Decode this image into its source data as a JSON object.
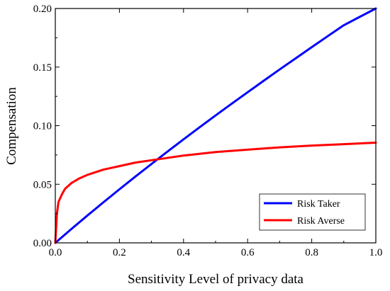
{
  "chart_data": {
    "type": "line",
    "title": "",
    "xlabel": "Sensitivity Level of privacy data",
    "ylabel": "Compensation",
    "xlim": [
      0.0,
      1.0
    ],
    "ylim": [
      0.0,
      0.2
    ],
    "xticks": [
      "0.0",
      "0.2",
      "0.4",
      "0.6",
      "0.8",
      "1.0"
    ],
    "yticks": [
      "0.00",
      "0.05",
      "0.10",
      "0.15",
      "0.20"
    ],
    "grid": false,
    "legend_position": "bottom-right",
    "series": [
      {
        "name": "Risk Taker",
        "color": "#0000ff",
        "x": [
          0.0,
          0.05,
          0.1,
          0.15,
          0.2,
          0.25,
          0.3,
          0.35,
          0.4,
          0.45,
          0.5,
          0.55,
          0.6,
          0.65,
          0.7,
          0.75,
          0.8,
          0.85,
          0.9,
          0.95,
          1.0
        ],
        "y": [
          0.0,
          0.0118,
          0.0233,
          0.0346,
          0.0457,
          0.0566,
          0.0673,
          0.0779,
          0.0883,
          0.0986,
          0.1087,
          0.1187,
          0.1285,
          0.1383,
          0.148,
          0.1575,
          0.167,
          0.1764,
          0.1857,
          0.1929,
          0.2
        ]
      },
      {
        "name": "Risk Averse",
        "color": "#ff0000",
        "x": [
          0.0,
          0.005,
          0.01,
          0.02,
          0.03,
          0.05,
          0.075,
          0.1,
          0.15,
          0.2,
          0.25,
          0.3,
          0.4,
          0.5,
          0.6,
          0.7,
          0.8,
          0.9,
          1.0
        ],
        "y": [
          0.0,
          0.025,
          0.035,
          0.041,
          0.046,
          0.051,
          0.055,
          0.058,
          0.0625,
          0.0655,
          0.0685,
          0.0705,
          0.0745,
          0.0775,
          0.0795,
          0.0815,
          0.083,
          0.0842,
          0.0855
        ]
      }
    ]
  }
}
